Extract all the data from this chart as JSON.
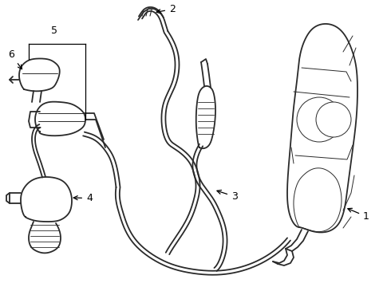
{
  "bg_color": "#ffffff",
  "line_color": "#2a2a2a",
  "lw_main": 1.3,
  "lw_thin": 0.7,
  "label_fontsize": 9,
  "figsize": [
    4.9,
    3.6
  ],
  "dpi": 100
}
